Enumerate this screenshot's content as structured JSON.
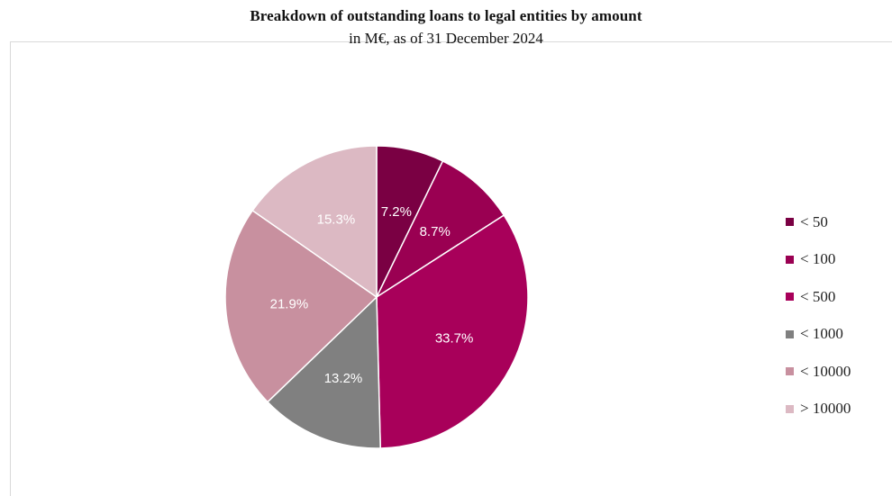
{
  "chart_data": {
    "type": "pie",
    "title": "Breakdown of outstanding loans to legal entities by amount",
    "subtitle": "in M€, as of 31 December 2024",
    "categories": [
      "< 50",
      "< 100",
      "< 500",
      "< 1000",
      "< 10000",
      "> 10000"
    ],
    "values": [
      7.2,
      8.7,
      33.7,
      13.2,
      21.9,
      15.3
    ],
    "value_labels": [
      "7.2%",
      "8.7%",
      "33.7%",
      "13.2%",
      "21.9%",
      "15.3%"
    ],
    "colors": [
      "#7a0043",
      "#9a0052",
      "#a8005a",
      "#808080",
      "#c8909f",
      "#dcb9c3"
    ],
    "legend": "right"
  }
}
